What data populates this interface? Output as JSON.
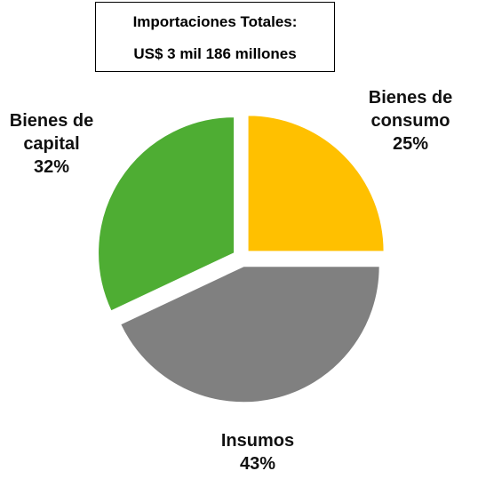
{
  "chart_data": {
    "type": "pie",
    "title": "Importaciones Totales:",
    "subtitle": "US$ 3 mil 186 millones",
    "categories": [
      "Bienes de consumo",
      "Insumos",
      "Bienes de capital"
    ],
    "values": [
      25,
      43,
      32
    ],
    "value_labels": [
      "25%",
      "43%",
      "32%"
    ],
    "colors": [
      "#FFC000",
      "#808080",
      "#4EAD33"
    ]
  }
}
